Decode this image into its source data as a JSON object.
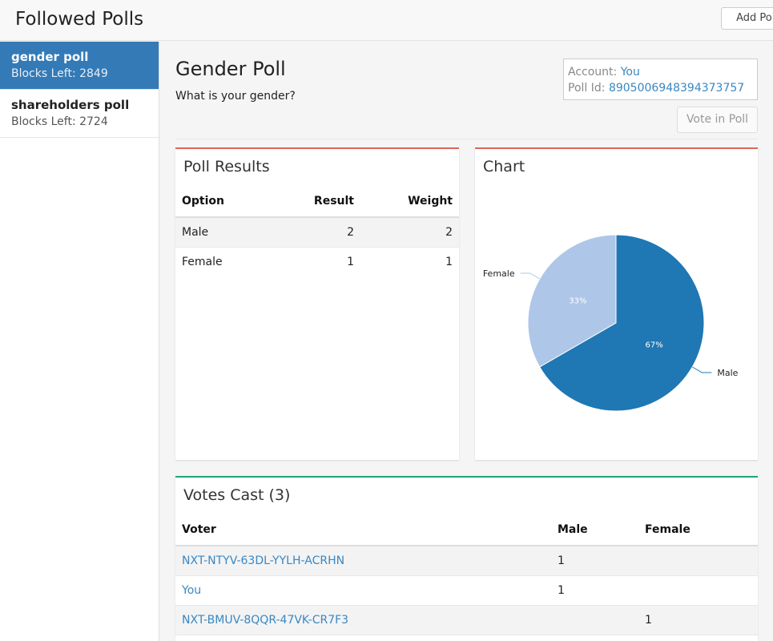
{
  "header": {
    "title": "Followed Polls",
    "add_poll_label": "Add Poll"
  },
  "sidebar": {
    "items": [
      {
        "name": "gender poll",
        "blocks": "Blocks Left: 2849",
        "active": true
      },
      {
        "name": "shareholders poll",
        "blocks": "Blocks Left: 2724",
        "active": false
      }
    ]
  },
  "poll": {
    "title": "Gender Poll",
    "question": "What is your gender?",
    "account_label": "Account:",
    "account_value": "You",
    "poll_id_label": "Poll Id:",
    "poll_id_value": "8905006948394373757",
    "vote_label": "Vote in Poll"
  },
  "results": {
    "title": "Poll Results",
    "headers": [
      "Option",
      "Result",
      "Weight"
    ],
    "rows": [
      {
        "option": "Male",
        "result": "2",
        "weight": "2"
      },
      {
        "option": "Female",
        "result": "1",
        "weight": "1"
      }
    ]
  },
  "chart_panel": {
    "title": "Chart"
  },
  "chart_data": {
    "type": "pie",
    "categories": [
      "Male",
      "Female"
    ],
    "values": [
      2,
      1
    ],
    "labels_pct": [
      "67%",
      "33%"
    ],
    "colors": [
      "#1f77b4",
      "#aec7e8"
    ]
  },
  "votes": {
    "title": "Votes Cast (3)",
    "headers": [
      "Voter",
      "Male",
      "Female"
    ],
    "rows": [
      {
        "voter": "NXT-NTYV-63DL-YYLH-ACRHN",
        "male": "1",
        "female": ""
      },
      {
        "voter": "You",
        "male": "1",
        "female": ""
      },
      {
        "voter": "NXT-BMUV-8QQR-47VK-CR7F3",
        "male": "",
        "female": "1"
      }
    ]
  }
}
